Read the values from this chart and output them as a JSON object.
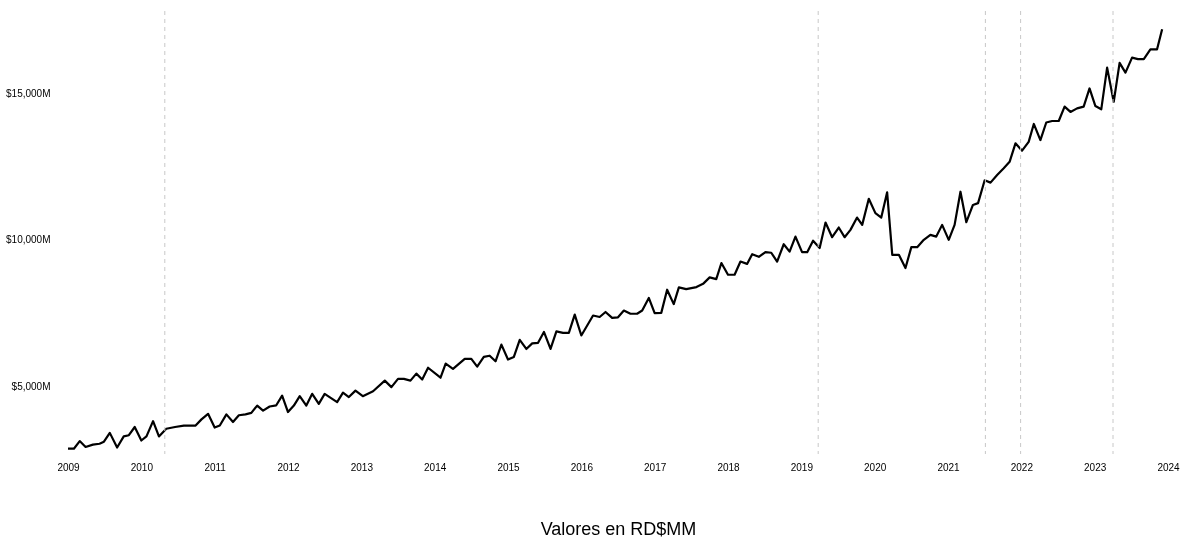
{
  "chart_data": {
    "type": "line",
    "xlabel": "Valores en RD$MM",
    "x": [
      2009.0,
      2009.08,
      2009.16,
      2009.24,
      2009.34,
      2009.43,
      2009.49,
      2009.57,
      2009.67,
      2009.76,
      2009.83,
      2009.91,
      2010.0,
      2010.07,
      2010.16,
      2010.24,
      2010.34,
      2010.46,
      2010.58,
      2010.74,
      2010.82,
      2010.91,
      2011.0,
      2011.07,
      2011.16,
      2011.25,
      2011.33,
      2011.42,
      2011.5,
      2011.58,
      2011.66,
      2011.75,
      2011.84,
      2011.92,
      2012.0,
      2012.08,
      2012.16,
      2012.25,
      2012.33,
      2012.42,
      2012.5,
      2012.67,
      2012.75,
      2012.83,
      2012.92,
      2013.02,
      2013.16,
      2013.32,
      2013.41,
      2013.5,
      2013.58,
      2013.67,
      2013.75,
      2013.83,
      2013.91,
      2014.08,
      2014.15,
      2014.25,
      2014.41,
      2014.5,
      2014.58,
      2014.67,
      2014.75,
      2014.83,
      2014.91,
      2015.0,
      2015.08,
      2015.16,
      2015.25,
      2015.33,
      2015.41,
      2015.49,
      2015.58,
      2015.66,
      2015.75,
      2015.83,
      2015.91,
      2016.0,
      2016.08,
      2016.16,
      2016.25,
      2016.33,
      2016.42,
      2016.5,
      2016.58,
      2016.67,
      2016.76,
      2016.83,
      2016.92,
      2017.0,
      2017.09,
      2017.17,
      2017.26,
      2017.33,
      2017.43,
      2017.57,
      2017.66,
      2017.75,
      2017.84,
      2017.91,
      2018.0,
      2018.09,
      2018.17,
      2018.26,
      2018.33,
      2018.42,
      2018.51,
      2018.59,
      2018.67,
      2018.76,
      2018.84,
      2018.92,
      2019.01,
      2019.08,
      2019.16,
      2019.25,
      2019.33,
      2019.42,
      2019.51,
      2019.59,
      2019.67,
      2019.76,
      2019.83,
      2019.92,
      2020.01,
      2020.09,
      2020.17,
      2020.24,
      2020.33,
      2020.42,
      2020.5,
      2020.58,
      2020.67,
      2020.76,
      2020.84,
      2020.92,
      2021.01,
      2021.09,
      2021.17,
      2021.25,
      2021.34,
      2021.41,
      2021.5,
      2021.58,
      2021.67,
      2021.76,
      2021.84,
      2021.92,
      2022.01,
      2022.1,
      2022.17,
      2022.26,
      2022.34,
      2022.42,
      2022.51,
      2022.59,
      2022.67,
      2022.76,
      2022.85,
      2022.93,
      2023.01,
      2023.09,
      2023.17,
      2023.26,
      2023.34,
      2023.42,
      2023.51,
      2023.59,
      2023.67,
      2023.76,
      2023.85,
      2023.92
    ],
    "series": [
      {
        "color": "#000000",
        "values": [
          2880,
          2880,
          3140,
          2940,
          3020,
          3050,
          3120,
          3420,
          2920,
          3300,
          3340,
          3620,
          3160,
          3300,
          3820,
          3300,
          3560,
          3620,
          3670,
          3670,
          3880,
          4070,
          3600,
          3670,
          4050,
          3790,
          4020,
          4050,
          4100,
          4350,
          4180,
          4320,
          4360,
          4690,
          4130,
          4350,
          4670,
          4350,
          4750,
          4410,
          4750,
          4470,
          4790,
          4640,
          4860,
          4670,
          4840,
          5200,
          4980,
          5260,
          5260,
          5200,
          5440,
          5240,
          5640,
          5300,
          5780,
          5600,
          5940,
          5940,
          5680,
          6010,
          6050,
          5860,
          6430,
          5920,
          6010,
          6590,
          6280,
          6470,
          6490,
          6860,
          6280,
          6880,
          6830,
          6830,
          7450,
          6740,
          7080,
          7420,
          7370,
          7540,
          7340,
          7360,
          7590,
          7480,
          7480,
          7590,
          8020,
          7500,
          7510,
          8300,
          7810,
          8380,
          8320,
          8390,
          8500,
          8720,
          8660,
          9210,
          8810,
          8810,
          9260,
          9180,
          9510,
          9420,
          9580,
          9560,
          9260,
          9850,
          9600,
          10110,
          9580,
          9580,
          9970,
          9720,
          10590,
          10090,
          10420,
          10090,
          10340,
          10760,
          10510,
          11400,
          10910,
          10760,
          11620,
          9490,
          9490,
          9040,
          9750,
          9750,
          10000,
          10170,
          10110,
          10510,
          10000,
          10510,
          11640,
          10600,
          11190,
          11250,
          12030,
          11950,
          12210,
          12440,
          12660,
          13290,
          13040,
          13340,
          13950,
          13400,
          14000,
          14050,
          14050,
          14540,
          14360,
          14480,
          14540,
          15160,
          14560,
          14450,
          15870,
          14700,
          16030,
          15700,
          16210,
          16160,
          16160,
          16490,
          16490,
          17180
        ]
      }
    ],
    "xlim": [
      2009,
      2024
    ],
    "xticks": [
      2009,
      2010,
      2011,
      2012,
      2013,
      2014,
      2015,
      2016,
      2017,
      2018,
      2019,
      2020,
      2021,
      2022,
      2023,
      2024
    ],
    "ylim": [
      2700,
      17800
    ],
    "yticks": [
      {
        "value": 5000,
        "label": "$5,000M"
      },
      {
        "value": 10000,
        "label": "$10,000M"
      },
      {
        "value": 15000,
        "label": "$15,000M"
      }
    ],
    "ref_lines": [
      {
        "axis": "x",
        "value": 2010.32,
        "color": "#c8c8c8",
        "line_style": "dashed"
      },
      {
        "axis": "x",
        "value": 2019.23,
        "color": "#c8c8c8",
        "line_style": "dashed"
      },
      {
        "axis": "x",
        "value": 2021.51,
        "color": "#c8c8c8",
        "line_style": "dashed"
      },
      {
        "axis": "x",
        "value": 2021.99,
        "color": "#c8c8c8",
        "line_style": "dashed"
      },
      {
        "axis": "x",
        "value": 2023.25,
        "color": "#c8c8c8",
        "line_style": "dashed"
      }
    ],
    "grid": false,
    "line_style": "solid",
    "marker": "none"
  }
}
